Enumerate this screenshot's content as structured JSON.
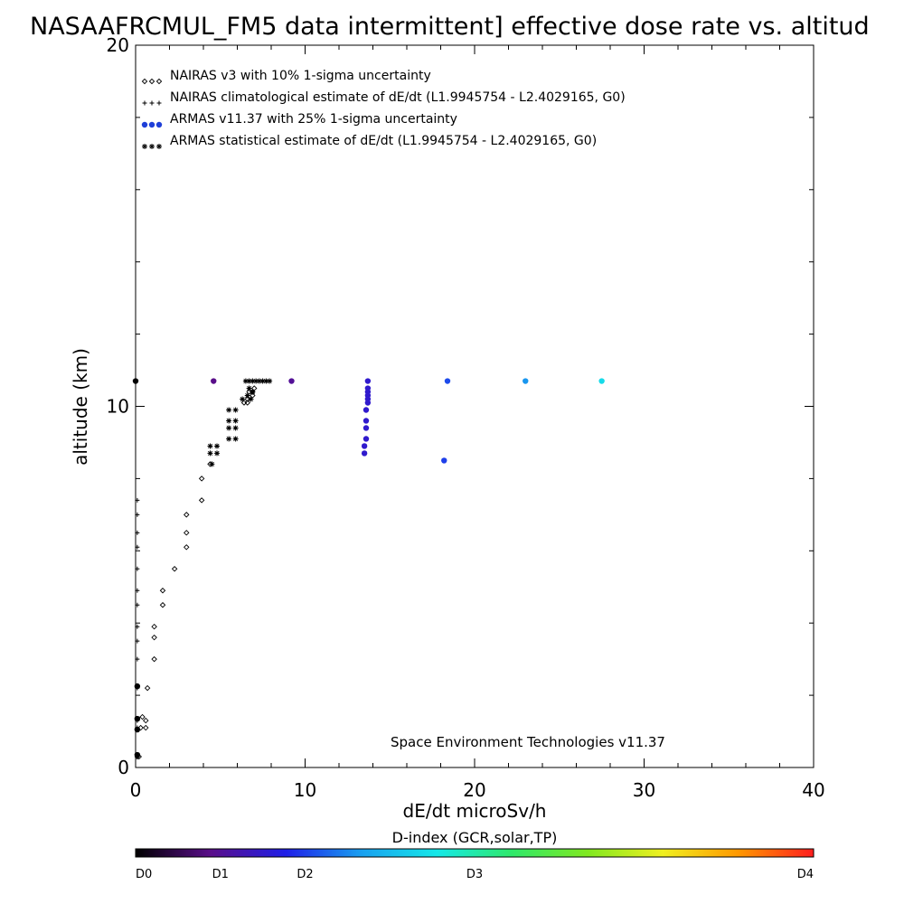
{
  "chart_data": {
    "type": "scatter",
    "title": "NASAAFRCMUL_FM5 data intermittent] effective dose rate vs. altitud",
    "xlabel": "dE/dt microSv/h",
    "ylabel": "altitude (km)",
    "xlim": [
      0,
      40
    ],
    "ylim": [
      0,
      20
    ],
    "x_ticks": [
      "0",
      "10",
      "20",
      "30",
      "40"
    ],
    "y_ticks": [
      "0",
      "10",
      "20"
    ],
    "legend_position": "top-left",
    "legend": [
      {
        "marker": "diamond",
        "symbol_text": "◇◇◇",
        "label": "NAIRAS v3 with 10% 1-sigma uncertainty"
      },
      {
        "marker": "plus",
        "symbol_text": "+++",
        "label": "NAIRAS climatological estimate of dE/dt (L1.9945754 - L2.4029165, G0)"
      },
      {
        "marker": "dot",
        "symbol_text": "●●●",
        "label": "ARMAS v11.37 with 25% 1-sigma uncertainty"
      },
      {
        "marker": "star",
        "symbol_text": "***",
        "label": "ARMAS statistical estimate of dE/dt (L1.9945754 - L2.4029165, G0)"
      }
    ],
    "annotation": "Space Environment Technologies v11.37",
    "colorbar": {
      "title": "D-index (GCR,solar,TP)",
      "labels": [
        "D0",
        "D1",
        "D2",
        "D3",
        "D4"
      ],
      "label_positions": [
        0,
        0.25,
        0.5,
        1.0,
        2.0
      ],
      "range": [
        0,
        2
      ],
      "colors": [
        "#000000",
        "#5a0e8a",
        "#1f1fe8",
        "#19a0f0",
        "#15e8e8",
        "#2ee86a",
        "#80e820",
        "#f0f020",
        "#ff9800",
        "#ff1e1e"
      ]
    },
    "series": [
      {
        "name": "NAIRAS v3 with 10% 1-sigma uncertainty",
        "marker": "diamond",
        "points": [
          [
            0.1,
            0.3
          ],
          [
            0.2,
            0.3
          ],
          [
            0.3,
            1.1
          ],
          [
            0.4,
            1.4
          ],
          [
            0.6,
            1.1
          ],
          [
            0.6,
            1.3
          ],
          [
            0.7,
            2.2
          ],
          [
            1.1,
            3.0
          ],
          [
            1.1,
            3.6
          ],
          [
            1.1,
            3.9
          ],
          [
            1.6,
            4.5
          ],
          [
            1.6,
            4.9
          ],
          [
            2.3,
            5.5
          ],
          [
            3.0,
            6.1
          ],
          [
            3.0,
            6.5
          ],
          [
            3.0,
            7.0
          ],
          [
            3.9,
            7.4
          ],
          [
            3.9,
            8.0
          ],
          [
            4.4,
            8.4
          ],
          [
            6.4,
            10.1
          ],
          [
            6.6,
            10.1
          ],
          [
            6.6,
            10.2
          ],
          [
            6.7,
            10.4
          ],
          [
            6.9,
            10.3
          ],
          [
            6.9,
            10.4
          ],
          [
            7.0,
            10.5
          ]
        ]
      },
      {
        "name": "NAIRAS climatological estimate of dE/dt (L1.9945754 - L2.4029165, G0)",
        "marker": "plus",
        "points": [
          [
            0.1,
            0.3
          ],
          [
            0.1,
            1.1
          ],
          [
            0.1,
            1.3
          ],
          [
            0.1,
            2.2
          ],
          [
            0.1,
            3.0
          ],
          [
            0.1,
            3.5
          ],
          [
            0.1,
            3.9
          ],
          [
            0.1,
            4.5
          ],
          [
            0.1,
            4.9
          ],
          [
            0.1,
            5.5
          ],
          [
            0.1,
            6.1
          ],
          [
            0.1,
            6.5
          ],
          [
            0.1,
            7.0
          ],
          [
            0.1,
            7.4
          ]
        ]
      },
      {
        "name": "ARMAS v11.37 with 25% 1-sigma uncertainty",
        "marker": "dot",
        "points": [
          [
            0.0,
            10.7,
            0.0
          ],
          [
            0.1,
            0.35,
            0.0
          ],
          [
            0.1,
            1.05,
            0.0
          ],
          [
            0.1,
            1.35,
            0.0
          ],
          [
            0.1,
            2.25,
            0.0
          ],
          [
            4.6,
            10.7,
            0.22
          ],
          [
            9.2,
            10.7,
            0.25
          ],
          [
            13.7,
            10.7,
            0.38
          ],
          [
            13.7,
            10.5,
            0.38
          ],
          [
            13.7,
            10.4,
            0.38
          ],
          [
            13.7,
            10.3,
            0.38
          ],
          [
            13.7,
            10.2,
            0.38
          ],
          [
            13.7,
            10.1,
            0.38
          ],
          [
            13.6,
            9.9,
            0.38
          ],
          [
            13.6,
            9.6,
            0.38
          ],
          [
            13.6,
            9.4,
            0.38
          ],
          [
            13.6,
            9.1,
            0.38
          ],
          [
            13.5,
            8.9,
            0.38
          ],
          [
            13.5,
            8.7,
            0.38
          ],
          [
            18.2,
            8.5,
            0.5
          ],
          [
            18.4,
            10.7,
            0.52
          ],
          [
            23.0,
            10.7,
            0.65
          ],
          [
            27.5,
            10.7,
            0.85
          ]
        ]
      },
      {
        "name": "ARMAS statistical estimate of dE/dt (L1.9945754 - L2.4029165, G0)",
        "marker": "star",
        "points": [
          [
            4.4,
            8.9
          ],
          [
            4.8,
            8.9
          ],
          [
            4.4,
            8.7
          ],
          [
            4.8,
            8.7
          ],
          [
            4.5,
            8.4
          ],
          [
            5.5,
            9.9
          ],
          [
            5.9,
            9.9
          ],
          [
            5.5,
            9.6
          ],
          [
            5.9,
            9.6
          ],
          [
            5.5,
            9.4
          ],
          [
            5.9,
            9.4
          ],
          [
            5.5,
            9.1
          ],
          [
            5.9,
            9.1
          ],
          [
            6.3,
            10.2
          ],
          [
            6.6,
            10.3
          ],
          [
            6.7,
            10.5
          ],
          [
            6.8,
            10.2
          ],
          [
            6.9,
            10.4
          ],
          [
            6.5,
            10.7
          ],
          [
            6.7,
            10.7
          ],
          [
            6.9,
            10.7
          ],
          [
            7.1,
            10.7
          ],
          [
            7.3,
            10.7
          ],
          [
            7.5,
            10.7
          ],
          [
            7.7,
            10.7
          ],
          [
            7.9,
            10.7
          ]
        ]
      }
    ]
  }
}
